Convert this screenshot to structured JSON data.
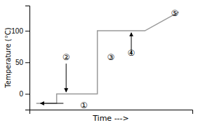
{
  "chart_data": {
    "type": "line",
    "title": "",
    "xlabel": "Time --->",
    "ylabel": "Temperature (°C)",
    "x": [
      0,
      1.5,
      1.5,
      4.5,
      4.5,
      8.0,
      8.0,
      10.5
    ],
    "values": [
      -15,
      -15,
      0,
      0,
      100,
      100,
      100,
      130
    ],
    "color": "#999999",
    "xlim": [
      -0.5,
      11.5
    ],
    "ylim": [
      -25,
      140
    ],
    "yticks": [
      0,
      50,
      100
    ],
    "tick_labels": "y",
    "annotations": [
      {
        "text": "①",
        "x": 3.5,
        "y": -18
      },
      {
        "text": "②",
        "x": 2.2,
        "y": 58
      },
      {
        "text": "③",
        "x": 5.5,
        "y": 58
      },
      {
        "text": "④",
        "x": 7.0,
        "y": 65
      },
      {
        "text": "⑤",
        "x": 10.2,
        "y": 128
      }
    ],
    "arrows": [
      {
        "from": [
          2.2,
          48
        ],
        "to": [
          2.2,
          3
        ]
      },
      {
        "from": [
          2.0,
          -15
        ],
        "to": [
          0.3,
          -15
        ]
      },
      {
        "from": [
          7.0,
          62
        ],
        "to": [
          7.0,
          97
        ]
      }
    ]
  }
}
